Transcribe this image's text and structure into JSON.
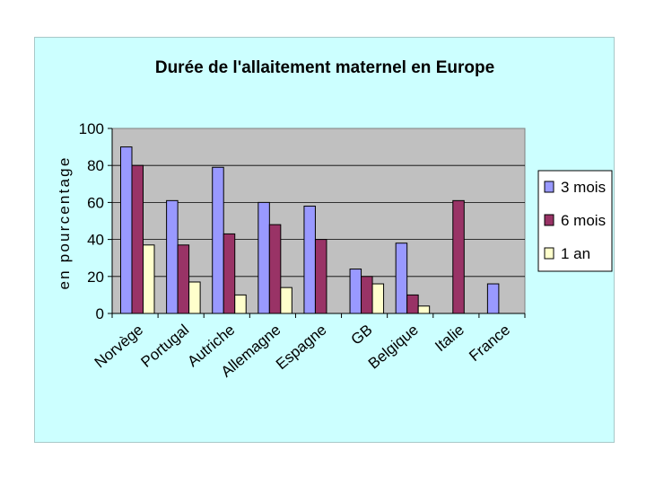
{
  "chart_data": {
    "type": "bar",
    "title": "Durée de l'allaitement maternel en Europe",
    "xlabel": "",
    "ylabel": "en pourcentage",
    "ylim": [
      0,
      100
    ],
    "yticks": [
      0,
      20,
      40,
      60,
      80,
      100
    ],
    "grid": true,
    "legend_position": "right",
    "categories": [
      "Norvège",
      "Portugal",
      "Autriche",
      "Allemagne",
      "Espagne",
      "GB",
      "Belgique",
      "Italie",
      "France"
    ],
    "series": [
      {
        "name": "3 mois",
        "color": "#9999ff",
        "values": [
          90,
          61,
          79,
          60,
          58,
          24,
          38,
          null,
          16
        ]
      },
      {
        "name": "6 mois",
        "color": "#993366",
        "values": [
          80,
          37,
          43,
          48,
          40,
          20,
          10,
          61,
          null
        ]
      },
      {
        "name": "1 an",
        "color": "#ffffcc",
        "values": [
          37,
          17,
          10,
          14,
          null,
          16,
          4,
          null,
          null
        ]
      }
    ],
    "colors": {
      "background": "#ccffff",
      "plot_area": "#c0c0c0",
      "gridline": "#000000"
    }
  }
}
